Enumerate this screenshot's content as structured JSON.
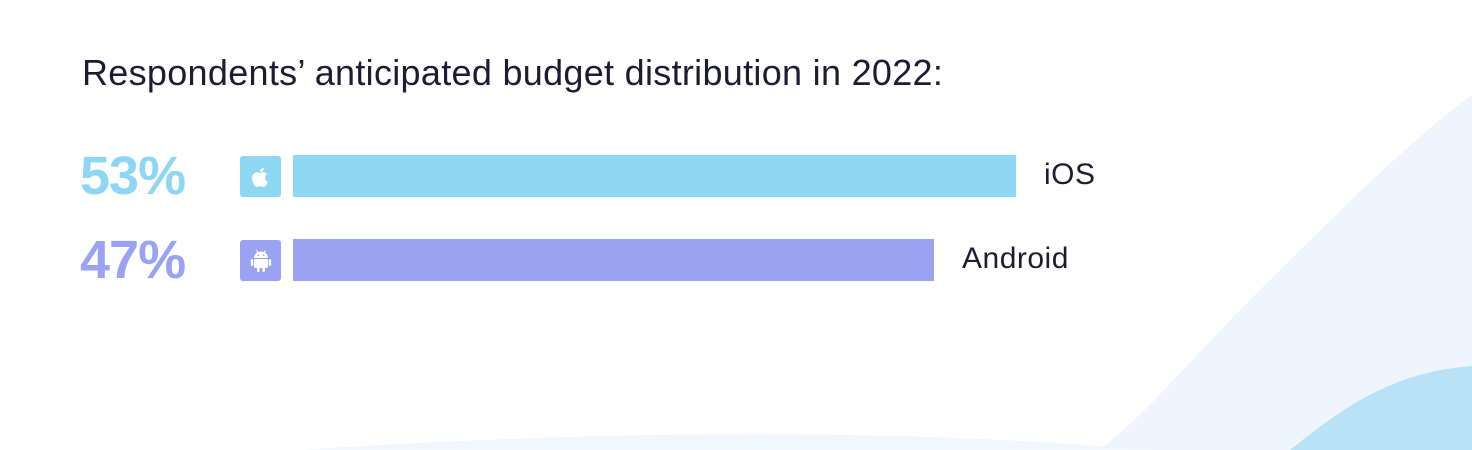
{
  "chart_data": {
    "type": "bar",
    "orientation": "horizontal",
    "title": "Respondents’ anticipated budget distribution in 2022:",
    "categories": [
      "iOS",
      "Android"
    ],
    "values": [
      53,
      47
    ],
    "value_labels": [
      "53%",
      "47%"
    ],
    "unit": "%",
    "xlim": [
      0,
      100
    ],
    "grid": false,
    "legend": "none",
    "icons": [
      "apple-icon",
      "android-icon"
    ],
    "colors": [
      "#8ed7f4",
      "#9aa3f3"
    ],
    "label_colors": [
      "#8ed7f4",
      "#9aa3f3"
    ]
  }
}
